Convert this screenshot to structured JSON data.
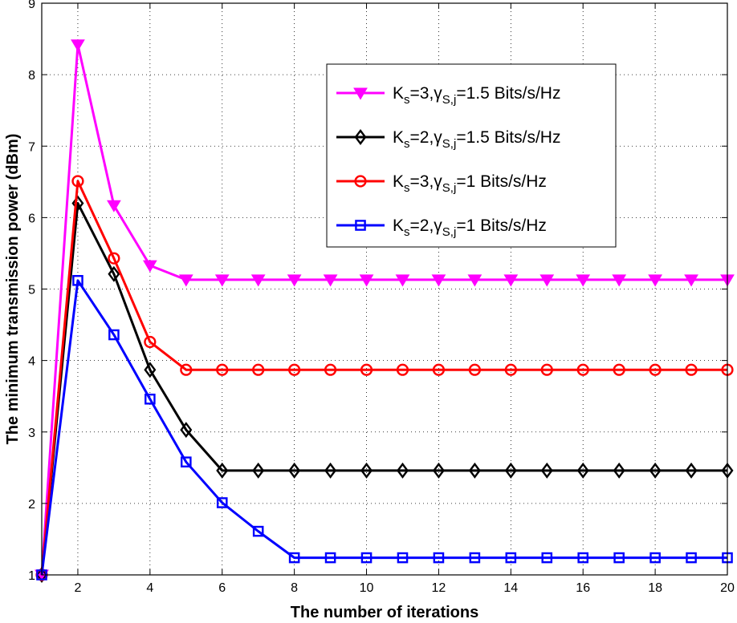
{
  "chart_data": {
    "type": "line",
    "xlabel": "The number of iterations",
    "ylabel": "The minimum transmission power (dBm)",
    "xlim": [
      1,
      20
    ],
    "ylim": [
      1,
      9
    ],
    "xticks": [
      2,
      4,
      6,
      8,
      10,
      12,
      14,
      16,
      18,
      20
    ],
    "yticks": [
      1,
      2,
      3,
      4,
      5,
      6,
      7,
      8,
      9
    ],
    "grid": true,
    "legend_position": "top-right",
    "x": [
      1,
      2,
      3,
      4,
      5,
      6,
      7,
      8,
      9,
      10,
      11,
      12,
      13,
      14,
      15,
      16,
      17,
      18,
      19,
      20
    ],
    "series": [
      {
        "name": "Ks=3,γS,j=1.5 Bits/s/Hz",
        "legend": {
          "a": "K",
          "a_sub": "s",
          "b": "=3,γ",
          "b_sub": "S,j",
          "c": "=1.5 Bits/s/Hz"
        },
        "color": "#ff00ff",
        "marker": "triangle-down",
        "values": [
          1.0,
          8.42,
          6.17,
          5.33,
          5.13,
          5.13,
          5.13,
          5.13,
          5.13,
          5.13,
          5.13,
          5.13,
          5.13,
          5.13,
          5.13,
          5.13,
          5.13,
          5.13,
          5.13,
          5.13
        ]
      },
      {
        "name": "Ks=2,γS,j=1.5 Bits/s/Hz",
        "legend": {
          "a": "K",
          "a_sub": "s",
          "b": "=2,γ",
          "b_sub": "S,j",
          "c": "=1.5 Bits/s/Hz"
        },
        "color": "#000000",
        "marker": "diamond",
        "values": [
          1.0,
          6.2,
          5.21,
          3.87,
          3.03,
          2.46,
          2.46,
          2.46,
          2.46,
          2.46,
          2.46,
          2.46,
          2.46,
          2.46,
          2.46,
          2.46,
          2.46,
          2.46,
          2.46,
          2.46
        ]
      },
      {
        "name": "Ks=3,γS,j=1 Bits/s/Hz",
        "legend": {
          "a": "K",
          "a_sub": "s",
          "b": "=3,γ",
          "b_sub": "S,j",
          "c": "=1 Bits/s/Hz"
        },
        "color": "#ff0000",
        "marker": "circle",
        "values": [
          1.0,
          6.51,
          5.43,
          4.26,
          3.87,
          3.87,
          3.87,
          3.87,
          3.87,
          3.87,
          3.87,
          3.87,
          3.87,
          3.87,
          3.87,
          3.87,
          3.87,
          3.87,
          3.87,
          3.87
        ]
      },
      {
        "name": "Ks=2,γS,j=1 Bits/s/Hz",
        "legend": {
          "a": "K",
          "a_sub": "s",
          "b": "=2,γ",
          "b_sub": "S,j",
          "c": "=1 Bits/s/Hz"
        },
        "color": "#0000ff",
        "marker": "square",
        "values": [
          1.0,
          5.12,
          4.36,
          3.46,
          2.58,
          2.01,
          1.61,
          1.24,
          1.24,
          1.24,
          1.24,
          1.24,
          1.24,
          1.24,
          1.24,
          1.24,
          1.24,
          1.24,
          1.24,
          1.24
        ]
      }
    ]
  }
}
